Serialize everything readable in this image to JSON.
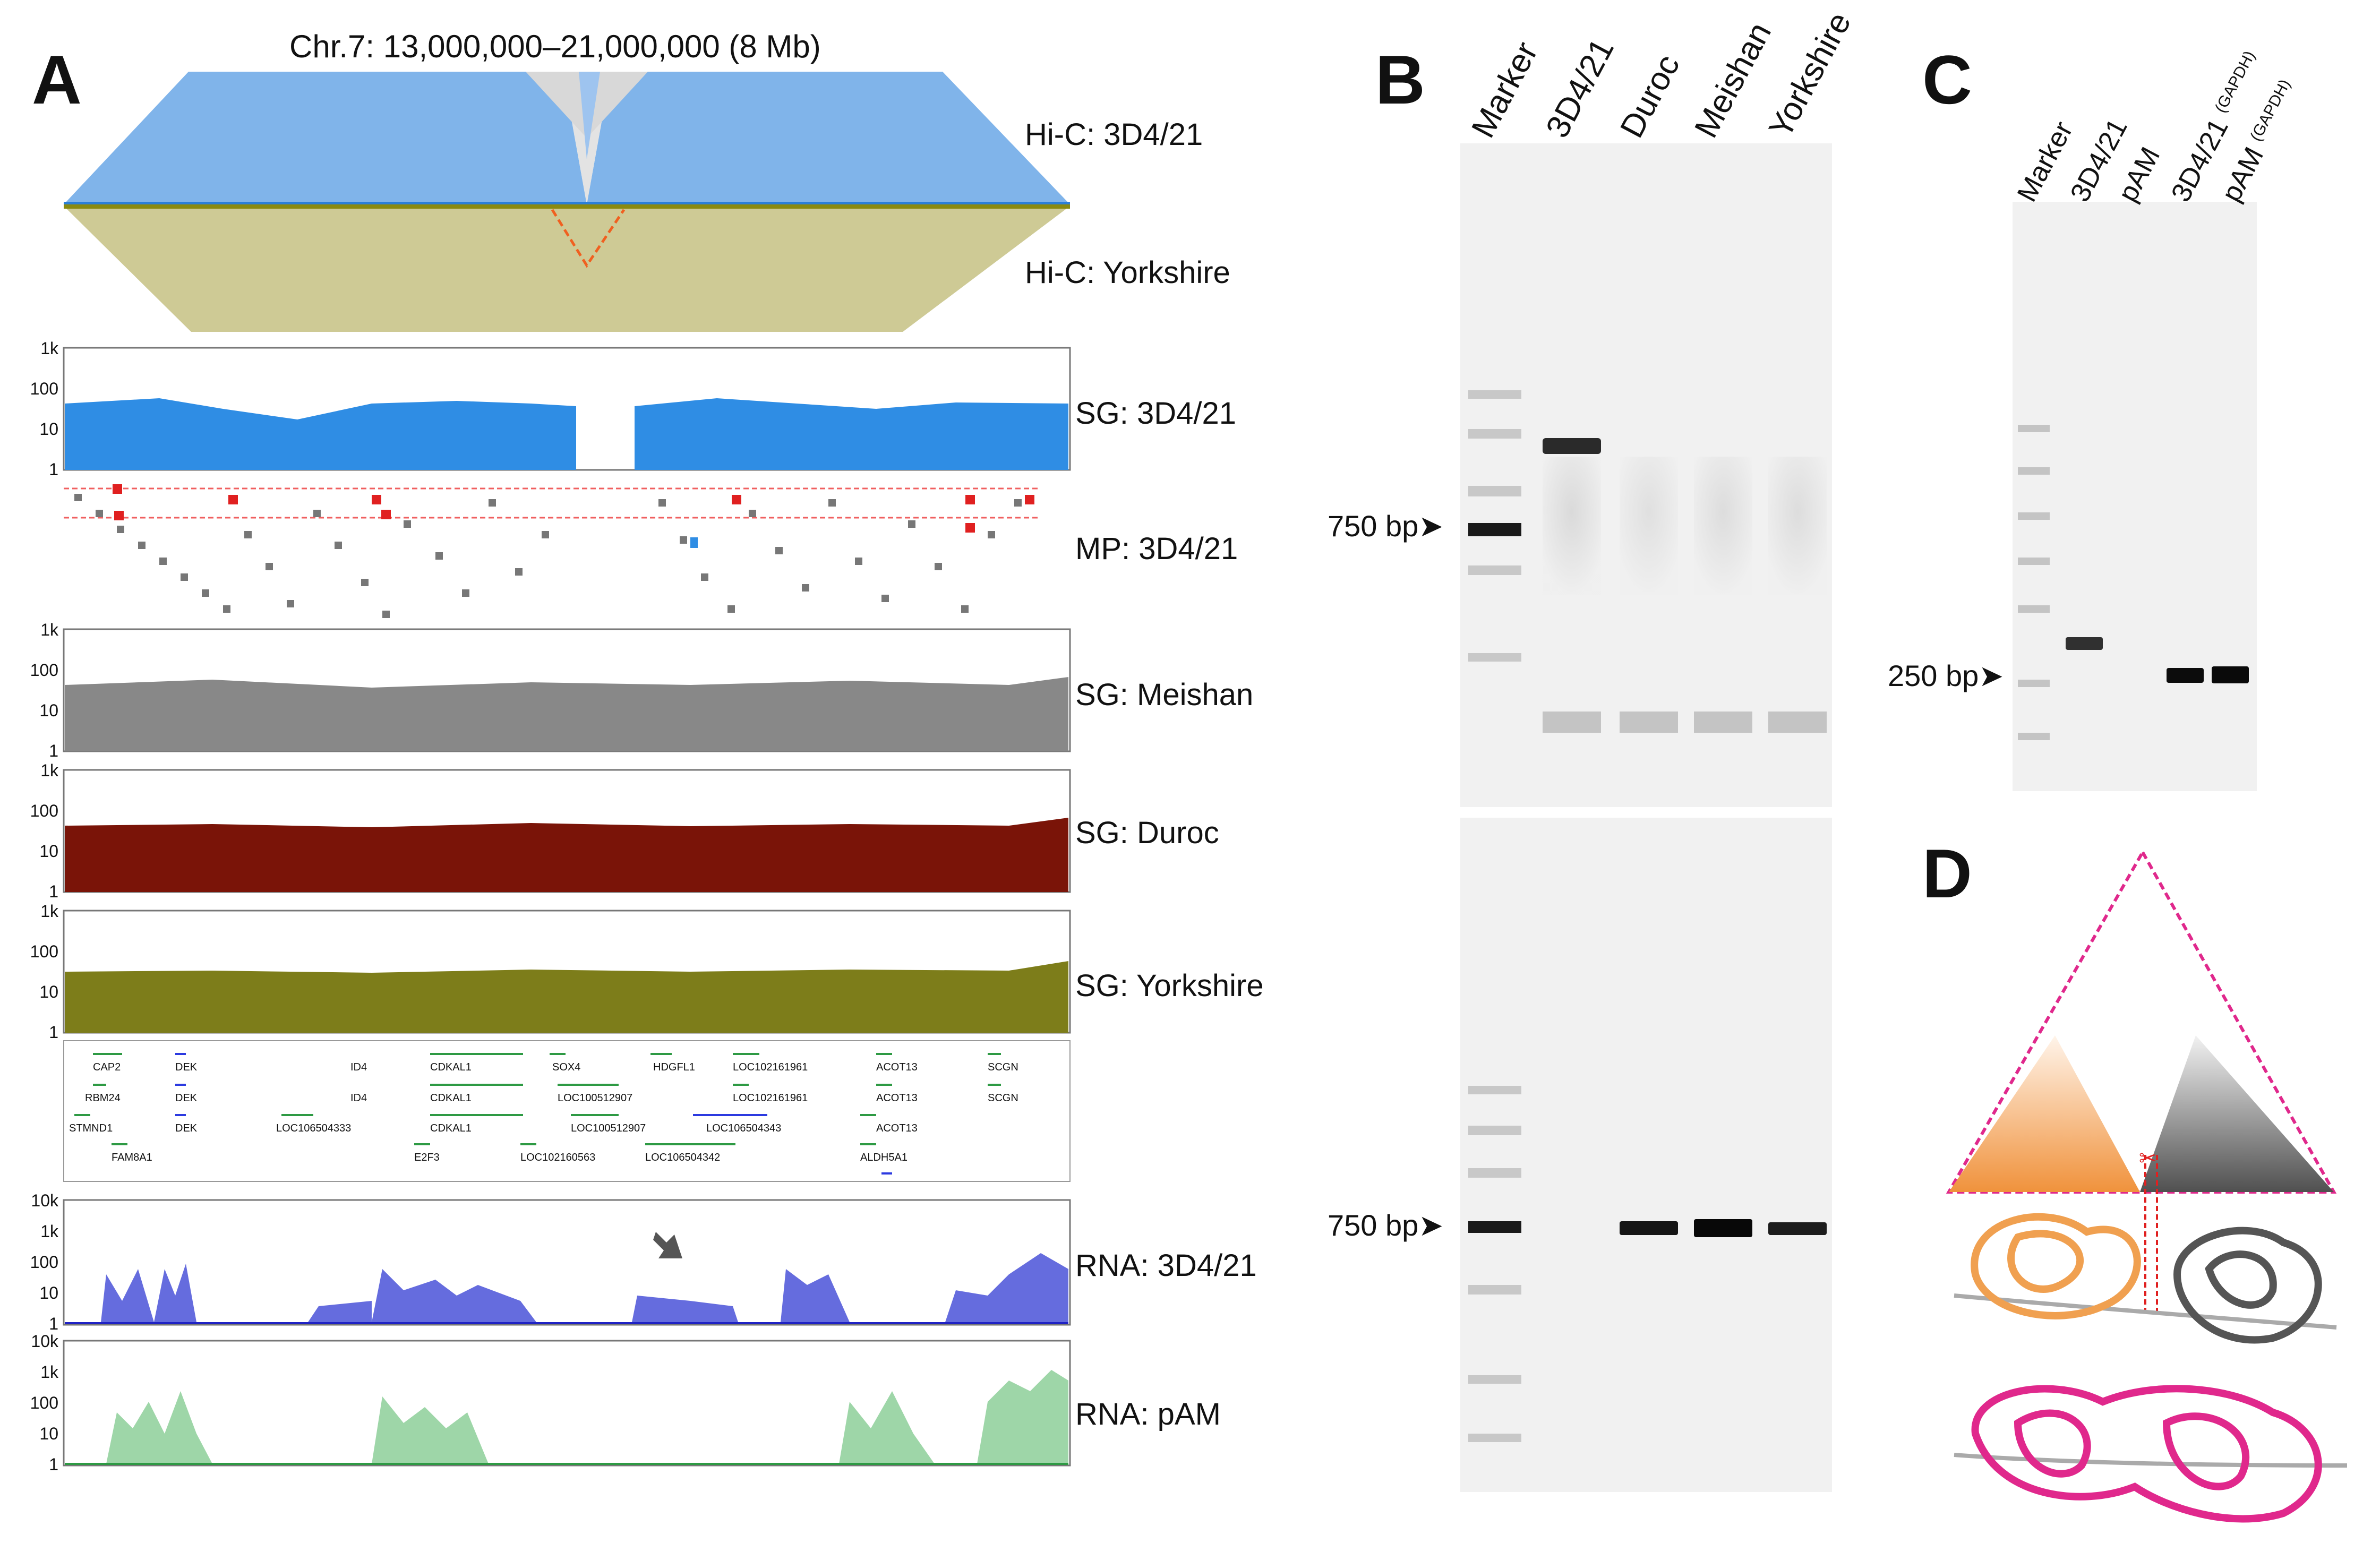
{
  "figure": {
    "panels": {
      "a": "A",
      "b": "B",
      "c": "C",
      "d": "D"
    },
    "panel_a": {
      "title": "Chr.7: 13,000,000–21,000,000 (8 Mb)",
      "tracks": [
        {
          "id": "hic1",
          "label": "Hi-C: 3D4/21",
          "color": "#3b8fe0"
        },
        {
          "id": "hic2",
          "label": "Hi-C: Yorkshire",
          "color": "#8a8a1e"
        },
        {
          "id": "sg1",
          "label": "SG: 3D4/21",
          "color": "#2f8de4"
        },
        {
          "id": "mp",
          "label": "MP: 3D4/21",
          "color": "#777777"
        },
        {
          "id": "sg2",
          "label": "SG: Meishan",
          "color": "#888888"
        },
        {
          "id": "sg3",
          "label": "SG: Duroc",
          "color": "#7a1408"
        },
        {
          "id": "sg4",
          "label": "SG: Yorkshire",
          "color": "#7d7d1a"
        },
        {
          "id": "rna1",
          "label": "RNA: 3D4/21",
          "color": "#1f22c4"
        },
        {
          "id": "rna2",
          "label": "RNA: pAM",
          "color": "#2e9a44"
        }
      ],
      "axis_ticks_1k": [
        "1k",
        "100",
        "10",
        "1"
      ],
      "axis_ticks_10k": [
        "10k",
        "1k",
        "100",
        "10",
        "1"
      ],
      "genes": [
        [
          "CAP2",
          "DEK",
          "ID4",
          "CDKAL1",
          "SOX4",
          "HDGFL1",
          "LOC102161961",
          "ACOT13",
          "SCGN"
        ],
        [
          "RBM24",
          "DEK",
          "ID4",
          "CDKAL1",
          "LOC100512907",
          "LOC102161961",
          "ACOT13",
          "SCGN"
        ],
        [
          "STMND1",
          "DEK",
          "LOC106504333",
          "CDKAL1",
          "LOC100512907",
          "LOC106504343",
          "ACOT13"
        ],
        [
          "FAM8A1",
          "E2F3",
          "LOC102160563",
          "LOC106504342",
          "ALDH5A1"
        ]
      ]
    },
    "panel_b": {
      "lanes": [
        "Marker",
        "3D4/21",
        "Duroc",
        "Meishan",
        "Yorkshire"
      ],
      "marker_top": "750 bp",
      "marker_bottom": "750 bp"
    },
    "panel_c": {
      "lanes": [
        "Marker",
        "3D4/21",
        "pAM"
      ],
      "lanes_gapdh": [
        {
          "name": "3D4/21",
          "sub": "(GAPDH)"
        },
        {
          "name": "pAM",
          "sub": "(GAPDH)"
        }
      ],
      "marker": "250 bp"
    },
    "colors": {
      "orange": "#f0a050",
      "gray": "#555555",
      "magenta": "#e0288c",
      "red": "#e02020"
    }
  }
}
